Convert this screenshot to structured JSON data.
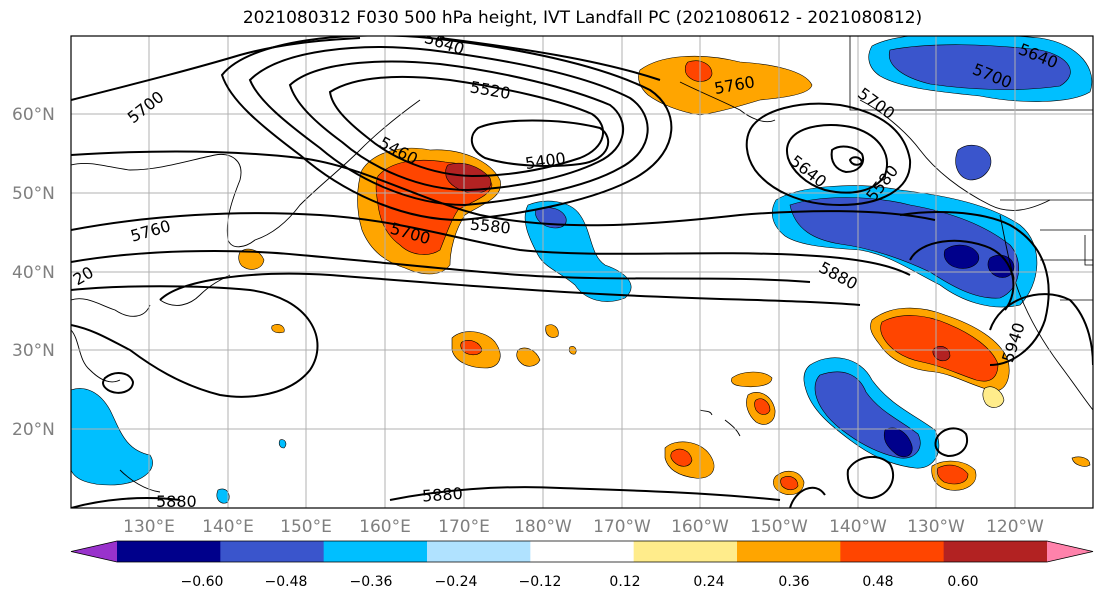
{
  "title": "2021080312 F030 500 hPa height, IVT Landfall PC (2021080612 - 2021080812)",
  "map": {
    "lat_ticks": [
      "60°N",
      "50°N",
      "40°N",
      "30°N",
      "20°N"
    ],
    "lon_ticks": [
      "130°E",
      "140°E",
      "150°E",
      "160°E",
      "170°E",
      "180°W",
      "170°W",
      "160°W",
      "150°W",
      "140°W",
      "130°W",
      "120°W"
    ]
  },
  "contour_labels": [
    {
      "text": "5640"
    },
    {
      "text": "5700"
    },
    {
      "text": "5520"
    },
    {
      "text": "5760"
    },
    {
      "text": "5400"
    },
    {
      "text": "5460"
    },
    {
      "text": "5580"
    },
    {
      "text": "5700"
    },
    {
      "text": "5760"
    },
    {
      "text": "5640"
    },
    {
      "text": "5580"
    },
    {
      "text": "5700"
    },
    {
      "text": "5640"
    },
    {
      "text": "5700"
    },
    {
      "text": "5880"
    },
    {
      "text": "5940"
    },
    {
      "text": "5880"
    },
    {
      "text": "5880"
    },
    {
      "text": "20"
    }
  ],
  "colorbar": {
    "colors": [
      "#9932cc",
      "#00008b",
      "#3a55cc",
      "#00bfff",
      "#b0e2ff",
      "#ffffff",
      "#ffec8b",
      "#ffa500",
      "#ff4500",
      "#b22222",
      "#ff82ab"
    ],
    "tick_labels": [
      "−0.60",
      "−0.48",
      "−0.36",
      "−0.24",
      "−0.12",
      "0.12",
      "0.24",
      "0.36",
      "0.48",
      "0.60"
    ]
  }
}
